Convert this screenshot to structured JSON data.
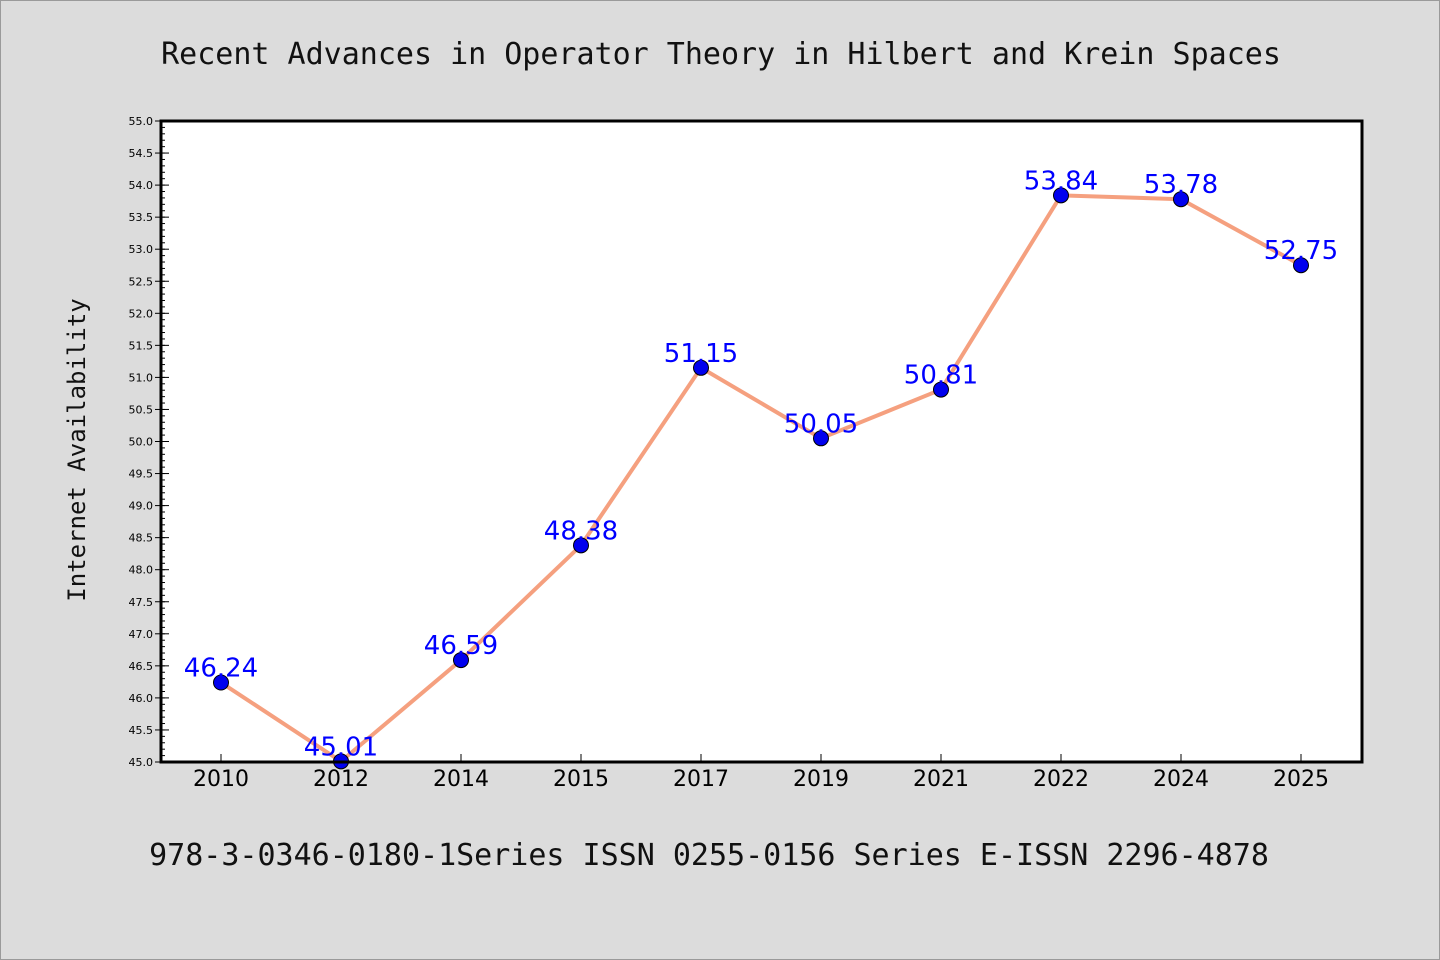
{
  "header": {
    "title": "Recent Advances in Operator Theory in Hilbert and Krein Spaces"
  },
  "footer": {
    "text": "978-3-0346-0180-1Series ISSN 0255-0156 Series E-ISSN 2296-4878"
  },
  "colors": {
    "background": "#dcdcdc",
    "plot_background": "#ffffff",
    "line": "#f5a07f",
    "marker": "#0000ee",
    "data_label": "#0000ff",
    "axis": "#000000"
  },
  "chart_data": {
    "type": "line",
    "title": "Recent Advances in Operator Theory in Hilbert and Krein Spaces",
    "xlabel": "",
    "ylabel": "Internet Availability",
    "categories": [
      "2010",
      "2012",
      "2014",
      "2015",
      "2017",
      "2019",
      "2021",
      "2022",
      "2024",
      "2025"
    ],
    "values": [
      46.24,
      45.01,
      46.59,
      48.38,
      51.15,
      50.05,
      50.81,
      53.84,
      53.78,
      52.75
    ],
    "data_labels": [
      "46.24",
      "45.01",
      "46.59",
      "48.38",
      "51.15",
      "50.05",
      "50.81",
      "53.84",
      "53.78",
      "52.75"
    ],
    "ylim": [
      45.0,
      55.0
    ],
    "yticks": [
      "45.0",
      "45.5",
      "46.0",
      "46.5",
      "47.0",
      "47.5",
      "48.0",
      "48.5",
      "49.0",
      "49.5",
      "50.0",
      "50.5",
      "51.0",
      "51.5",
      "52.0",
      "52.5",
      "53.0",
      "53.5",
      "54.0",
      "54.5",
      "55.0"
    ],
    "grid": false,
    "legend": "none"
  }
}
